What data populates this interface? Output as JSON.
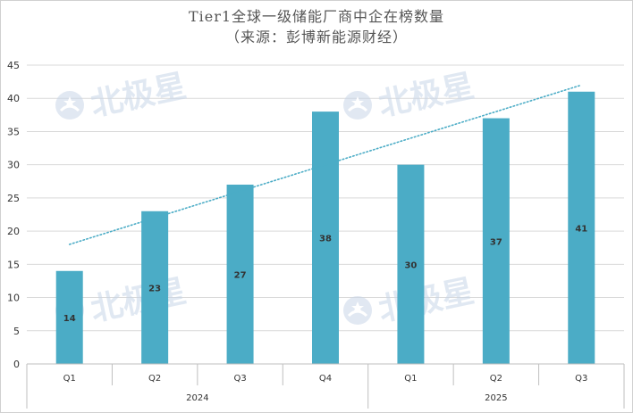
{
  "chart_data": {
    "type": "bar",
    "title": "Tier1全球一级储能厂商中企在榜数量",
    "subtitle": "（来源：彭博新能源财经）",
    "categories": [
      "Q1",
      "Q2",
      "Q3",
      "Q4",
      "Q1",
      "Q2",
      "Q3"
    ],
    "groups": [
      {
        "label": "2024",
        "categories": [
          "Q1",
          "Q2",
          "Q3",
          "Q4"
        ]
      },
      {
        "label": "2025",
        "categories": [
          "Q1",
          "Q2",
          "Q3"
        ]
      }
    ],
    "values": [
      14,
      23,
      27,
      38,
      30,
      37,
      41
    ],
    "data_labels": [
      "14",
      "23",
      "27",
      "38",
      "30",
      "37",
      "41"
    ],
    "ylim": [
      0,
      45
    ],
    "yticks": [
      "0",
      "5",
      "10",
      "15",
      "20",
      "25",
      "30",
      "35",
      "40",
      "45"
    ],
    "trendline": {
      "type": "linear",
      "style": "dotted",
      "start": 18,
      "end": 42
    },
    "gridlines": true,
    "legend": "none",
    "xlabel": "",
    "ylabel": ""
  },
  "watermark": {
    "text": "北极星",
    "icon": "polaris-star-logo-icon"
  },
  "colors": {
    "bar": "#4bacc6",
    "trendline": "#4bacc6",
    "grid": "#d9d9d9",
    "axis": "#bfbfbf",
    "text": "#333333",
    "title": "#555555",
    "watermark": "#c8d6e8"
  }
}
